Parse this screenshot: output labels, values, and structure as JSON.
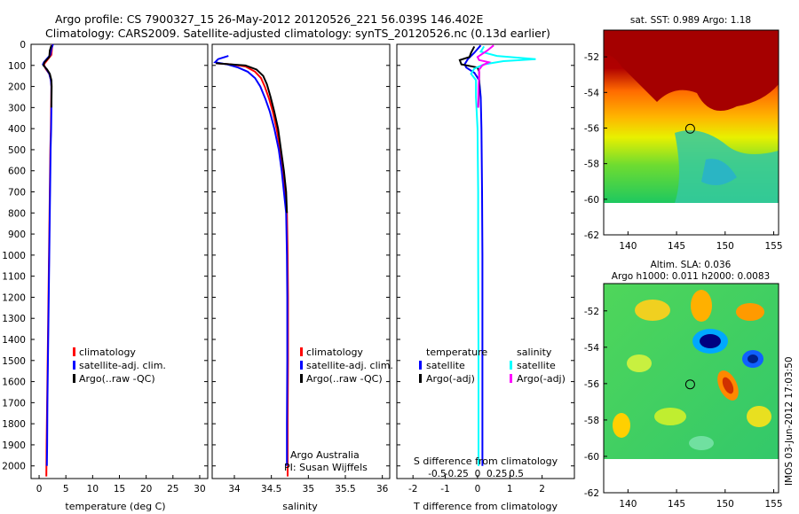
{
  "header": {
    "line1": "Argo profile: CS 7900327_15 26-May-2012 20120526_221 56.039S 146.402E",
    "line2": "Climatology: CARS2009. Satellite-adjusted climatology: synTS_20120526.nc (0.13d earlier)"
  },
  "colors": {
    "climatology": "#ff0000",
    "satellite": "#0000ff",
    "argo": "#000000",
    "satellite_salinity": "#00ffff",
    "argo_adj_salinity": "#ff00ff"
  },
  "depth_axis": {
    "ticks": [
      0,
      100,
      200,
      300,
      400,
      500,
      600,
      700,
      800,
      900,
      1000,
      1100,
      1200,
      1300,
      1400,
      1500,
      1600,
      1700,
      1800,
      1900,
      2000
    ],
    "range": [
      0,
      2060
    ]
  },
  "chart_data": [
    {
      "id": "temperature",
      "type": "line",
      "xlabel": "temperature (deg C)",
      "xlim": [
        -1.5,
        31.5
      ],
      "xticks": [
        0,
        5,
        10,
        15,
        20,
        25,
        30
      ],
      "legend": [
        "climatology",
        "satellite-adj. clim.",
        "Argo(..raw -QC)"
      ],
      "series": [
        {
          "name": "climatology",
          "color": "#ff0000",
          "points": [
            [
              2.5,
              0
            ],
            [
              2.4,
              20
            ],
            [
              2.3,
              50
            ],
            [
              1.2,
              85
            ],
            [
              0.9,
              95
            ],
            [
              1.2,
              115
            ],
            [
              1.9,
              140
            ],
            [
              2.2,
              170
            ],
            [
              2.3,
              200
            ],
            [
              2.25,
              300
            ],
            [
              2.2,
              400
            ],
            [
              2.1,
              500
            ],
            [
              2.0,
              700
            ],
            [
              1.9,
              900
            ],
            [
              1.8,
              1100
            ],
            [
              1.7,
              1300
            ],
            [
              1.6,
              1500
            ],
            [
              1.5,
              1700
            ],
            [
              1.4,
              1900
            ],
            [
              1.35,
              2050
            ]
          ]
        },
        {
          "name": "satellite-adj. clim.",
          "color": "#0000ff",
          "points": [
            [
              2.6,
              0
            ],
            [
              2.3,
              20
            ],
            [
              2.1,
              50
            ],
            [
              0.9,
              85
            ],
            [
              0.7,
              95
            ],
            [
              1.3,
              115
            ],
            [
              1.9,
              140
            ],
            [
              2.2,
              170
            ],
            [
              2.3,
              200
            ],
            [
              2.3,
              300
            ],
            [
              2.25,
              400
            ],
            [
              2.15,
              500
            ],
            [
              2.05,
              700
            ],
            [
              1.95,
              900
            ],
            [
              1.85,
              1100
            ],
            [
              1.75,
              1300
            ],
            [
              1.65,
              1500
            ],
            [
              1.55,
              1700
            ],
            [
              1.5,
              1900
            ],
            [
              1.45,
              2000
            ]
          ]
        },
        {
          "name": "Argo(..raw -QC)",
          "color": "#000000",
          "points": [
            [
              2.3,
              5
            ],
            [
              2.0,
              30
            ],
            [
              1.9,
              60
            ],
            [
              1.0,
              85
            ],
            [
              0.8,
              100
            ],
            [
              1.5,
              120
            ],
            [
              2.0,
              140
            ],
            [
              2.3,
              170
            ],
            [
              2.35,
              200
            ],
            [
              2.3,
              300
            ]
          ]
        }
      ]
    },
    {
      "id": "salinity",
      "type": "line",
      "xlabel": "salinity",
      "xlim": [
        33.7,
        36.1
      ],
      "xticks": [
        34,
        34.5,
        35,
        35.5,
        36
      ],
      "legend": [
        "climatology",
        "satellite-adj. clim.",
        "Argo(..raw -QC)"
      ],
      "annotations": [
        "Argo Australia",
        "PI: Susan Wijffels"
      ],
      "series": [
        {
          "name": "climatology",
          "color": "#ff0000",
          "points": [
            [
              33.75,
              90
            ],
            [
              33.95,
              95
            ],
            [
              34.15,
              105
            ],
            [
              34.28,
              130
            ],
            [
              34.36,
              160
            ],
            [
              34.41,
              200
            ],
            [
              34.47,
              260
            ],
            [
              34.52,
              320
            ],
            [
              34.57,
              400
            ],
            [
              34.62,
              500
            ],
            [
              34.66,
              600
            ],
            [
              34.69,
              700
            ],
            [
              34.71,
              800
            ],
            [
              34.72,
              1000
            ],
            [
              34.725,
              1200
            ],
            [
              34.725,
              1500
            ],
            [
              34.72,
              1800
            ],
            [
              34.72,
              2050
            ]
          ]
        },
        {
          "name": "satellite-adj. clim.",
          "color": "#0000ff",
          "points": [
            [
              33.92,
              55
            ],
            [
              33.78,
              70
            ],
            [
              33.74,
              85
            ],
            [
              33.9,
              95
            ],
            [
              34.05,
              110
            ],
            [
              34.18,
              130
            ],
            [
              34.28,
              160
            ],
            [
              34.35,
              200
            ],
            [
              34.42,
              260
            ],
            [
              34.48,
              320
            ],
            [
              34.54,
              400
            ],
            [
              34.6,
              500
            ],
            [
              34.64,
              600
            ],
            [
              34.67,
              700
            ],
            [
              34.7,
              800
            ],
            [
              34.71,
              1000
            ],
            [
              34.715,
              1200
            ],
            [
              34.715,
              1500
            ],
            [
              34.71,
              1800
            ],
            [
              34.71,
              2000
            ]
          ]
        },
        {
          "name": "Argo(..raw -QC)",
          "color": "#000000",
          "points": [
            [
              33.75,
              90
            ],
            [
              33.95,
              95
            ],
            [
              34.15,
              100
            ],
            [
              34.3,
              120
            ],
            [
              34.39,
              150
            ],
            [
              34.44,
              190
            ],
            [
              34.49,
              250
            ],
            [
              34.54,
              320
            ],
            [
              34.59,
              400
            ],
            [
              34.63,
              500
            ],
            [
              34.67,
              600
            ],
            [
              34.7,
              700
            ],
            [
              34.71,
              800
            ]
          ]
        }
      ]
    },
    {
      "id": "differences",
      "type": "line",
      "xlabel": "T difference from climatology",
      "xlabel_top": "S difference from climatology",
      "xlim": [
        -2.5,
        3.0
      ],
      "xticks": [
        -2,
        -1,
        0,
        1,
        2
      ],
      "xticks_top": [
        "-0.5",
        "-0.25",
        "0",
        "0.25",
        "0.5"
      ],
      "legend_left_title": "temperature",
      "legend_right_title": "salinity",
      "legend": [
        "satellite",
        "Argo(-adj)",
        "satellite",
        "Argo(-adj)"
      ],
      "series": [
        {
          "name": "temperature satellite",
          "color": "#0000ff",
          "points": [
            [
              0.1,
              5
            ],
            [
              -0.1,
              40
            ],
            [
              -0.3,
              70
            ],
            [
              -0.4,
              95
            ],
            [
              -0.35,
              110
            ],
            [
              -0.1,
              135
            ],
            [
              0.05,
              170
            ],
            [
              0.1,
              250
            ],
            [
              0.12,
              400
            ],
            [
              0.14,
              700
            ],
            [
              0.15,
              1000
            ],
            [
              0.15,
              1500
            ],
            [
              0.15,
              2000
            ]
          ]
        },
        {
          "name": "temperature Argo(-adj)",
          "color": "#000000",
          "points": [
            [
              -0.1,
              10
            ],
            [
              -0.2,
              40
            ],
            [
              -0.25,
              60
            ],
            [
              -0.55,
              75
            ],
            [
              -0.5,
              95
            ],
            [
              0.0,
              110
            ],
            [
              0.05,
              130
            ],
            [
              0.05,
              200
            ],
            [
              0.02,
              300
            ]
          ]
        },
        {
          "name": "salinity satellite",
          "color": "#00ffff",
          "points": [
            [
              0.2,
              10
            ],
            [
              0.1,
              35
            ],
            [
              0.6,
              55
            ],
            [
              1.8,
              70
            ],
            [
              0.8,
              80
            ],
            [
              0.2,
              95
            ],
            [
              -0.1,
              115
            ],
            [
              -0.2,
              140
            ],
            [
              -0.05,
              170
            ],
            [
              -0.05,
              250
            ],
            [
              0.0,
              400
            ],
            [
              0.02,
              700
            ],
            [
              0.02,
              1000
            ],
            [
              0.03,
              1500
            ],
            [
              0.03,
              2000
            ]
          ]
        },
        {
          "name": "salinity Argo(-adj)",
          "color": "#ff00ff",
          "points": [
            [
              0.5,
              5
            ],
            [
              0.3,
              30
            ],
            [
              0.0,
              60
            ],
            [
              0.05,
              75
            ],
            [
              0.35,
              85
            ],
            [
              0.15,
              100
            ],
            [
              0.05,
              120
            ],
            [
              0.05,
              150
            ],
            [
              0.03,
              200
            ],
            [
              0.02,
              300
            ]
          ]
        }
      ]
    },
    {
      "id": "sst_map",
      "type": "heatmap",
      "title": "sat. SST: 0.989 Argo: 1.18",
      "xlim": [
        137.5,
        155.5
      ],
      "ylim": [
        -62,
        -50.5
      ],
      "xticks": [
        140,
        145,
        150,
        155
      ],
      "yticks": [
        -52,
        -54,
        -56,
        -58,
        -60,
        -62
      ],
      "marker": [
        146.4,
        -56.04
      ]
    },
    {
      "id": "sla_map",
      "type": "heatmap",
      "title": "Altim. SLA: 0.036",
      "subtitle": "Argo h1000: 0.011 h2000: 0.0083",
      "xlim": [
        137.5,
        155.5
      ],
      "ylim": [
        -62,
        -50.5
      ],
      "xticks": [
        140,
        145,
        150,
        155
      ],
      "yticks": [
        -52,
        -54,
        -56,
        -58,
        -60,
        -62
      ],
      "marker": [
        146.4,
        -56.04
      ]
    }
  ],
  "footer_vertical": "IMOS 03-Jun-2012 17:03:50"
}
